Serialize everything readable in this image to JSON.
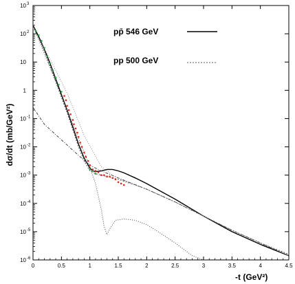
{
  "chart_data": {
    "type": "line",
    "xlabel": "-t (GeV²)",
    "ylabel": "dσ/dt  (mb/GeV²)",
    "xlim": [
      0,
      4.5
    ],
    "ylim_log10": [
      -6,
      3
    ],
    "y_scale": "log",
    "grid": false,
    "legend_position": "top-center",
    "x_ticks": [
      {
        "v": 0,
        "label": "0"
      },
      {
        "v": 0.5,
        "label": "0.5"
      },
      {
        "v": 1,
        "label": "1"
      },
      {
        "v": 1.5,
        "label": "1.5"
      },
      {
        "v": 2,
        "label": "2"
      },
      {
        "v": 2.5,
        "label": "2.5"
      },
      {
        "v": 3,
        "label": "3"
      },
      {
        "v": 3.5,
        "label": "3.5"
      },
      {
        "v": 4,
        "label": "4"
      },
      {
        "v": 4.5,
        "label": "4.5"
      }
    ],
    "y_ticks": [
      {
        "e": 3,
        "label": "10",
        "exp": "3"
      },
      {
        "e": 2,
        "label": "10",
        "exp": "2"
      },
      {
        "e": 1,
        "label": "10",
        "exp": ""
      },
      {
        "e": 0,
        "label": "1",
        "exp": ""
      },
      {
        "e": -1,
        "label": "10",
        "exp": "-1"
      },
      {
        "e": -2,
        "label": "10",
        "exp": "-2"
      },
      {
        "e": -3,
        "label": "10",
        "exp": "-3"
      },
      {
        "e": -4,
        "label": "10",
        "exp": "-4"
      },
      {
        "e": -5,
        "label": "10",
        "exp": "-5"
      },
      {
        "e": -6,
        "label": "10",
        "exp": "-6"
      }
    ],
    "legend": [
      {
        "label": "pp̄ 546 GeV",
        "style": "solid"
      },
      {
        "label": "pp 500 GeV",
        "style": "dashed"
      }
    ],
    "series": [
      {
        "name": "pp̄ 546 GeV",
        "style": "solid",
        "color": "#000000",
        "x": [
          0,
          0.1,
          0.2,
          0.3,
          0.4,
          0.5,
          0.6,
          0.7,
          0.8,
          0.9,
          1.0,
          1.05,
          1.1,
          1.2,
          1.3,
          1.4,
          1.5,
          1.6,
          1.8,
          2.0,
          2.5,
          3.0,
          3.5,
          4.0,
          4.5
        ],
        "log10y": [
          2.3,
          1.9,
          1.45,
          0.95,
          0.4,
          -0.15,
          -0.7,
          -1.3,
          -1.9,
          -2.4,
          -2.75,
          -2.85,
          -2.88,
          -2.85,
          -2.8,
          -2.8,
          -2.85,
          -2.92,
          -3.1,
          -3.3,
          -3.85,
          -4.45,
          -5.0,
          -5.45,
          -5.85
        ]
      },
      {
        "name": "pp 500 GeV",
        "style": "dashed",
        "color": "#555555",
        "x": [
          0,
          0.1,
          0.2,
          0.3,
          0.4,
          0.5,
          0.6,
          0.7,
          0.8,
          0.9,
          1.0,
          1.1,
          1.2,
          1.3,
          1.5,
          1.8,
          2.0,
          2.5,
          3.0,
          3.5,
          4.0,
          4.5
        ],
        "log10y": [
          2.25,
          1.85,
          1.4,
          0.85,
          0.3,
          -0.25,
          -0.8,
          -1.4,
          -2.0,
          -2.5,
          -2.85,
          -2.95,
          -3.0,
          -3.05,
          -3.15,
          -3.35,
          -3.5,
          -3.95,
          -4.45,
          -4.95,
          -5.4,
          -5.8
        ]
      },
      {
        "style": "dotted",
        "color": "#444444",
        "x": [
          0,
          0.2,
          0.4,
          0.6,
          0.8,
          0.9,
          1.0,
          1.1,
          1.2,
          1.25,
          1.3,
          1.35,
          1.45,
          1.6,
          1.8,
          2.0,
          2.2,
          2.5,
          2.8,
          3.0
        ],
        "log10y": [
          2.3,
          1.3,
          0.3,
          -0.7,
          -1.7,
          -2.2,
          -2.7,
          -3.3,
          -4.2,
          -4.8,
          -5.1,
          -4.9,
          -4.6,
          -4.55,
          -4.6,
          -4.75,
          -5.0,
          -5.4,
          -5.85,
          -6.0
        ]
      },
      {
        "style": "dashdot",
        "color": "#444444",
        "x": [
          0,
          0.2,
          0.5,
          0.8,
          1.0,
          1.2,
          1.5,
          2.0,
          2.5,
          3.0,
          3.5,
          4.0,
          4.5
        ],
        "log10y": [
          -0.6,
          -1.2,
          -1.75,
          -2.3,
          -2.65,
          -2.85,
          -3.1,
          -3.5,
          -3.95,
          -4.45,
          -4.95,
          -5.4,
          -5.85
        ]
      },
      {
        "style": "dotted",
        "color": "#888888",
        "x": [
          0,
          0.3,
          0.6,
          0.9,
          1.2,
          1.4,
          1.6,
          1.8,
          2.0,
          2.5,
          3.0,
          3.5,
          4.0,
          4.5
        ],
        "log10y": [
          2.2,
          1.1,
          -0.1,
          -1.6,
          -2.7,
          -3.0,
          -3.2,
          -3.35,
          -3.5,
          -3.95,
          -4.45,
          -4.95,
          -5.4,
          -5.85
        ]
      }
    ],
    "points_red": {
      "x": [
        0.55,
        0.58,
        0.6,
        0.63,
        0.66,
        0.7,
        0.72,
        0.75,
        0.78,
        0.8,
        0.83,
        0.86,
        0.9,
        0.93,
        0.97,
        1.0,
        1.05,
        1.1,
        1.15,
        1.2,
        1.25,
        1.3,
        1.35,
        1.4,
        1.45,
        1.5,
        1.55,
        1.6
      ],
      "log10y": [
        -0.2,
        -0.35,
        -0.55,
        -0.7,
        -0.85,
        -1.05,
        -1.2,
        -1.35,
        -1.5,
        -1.65,
        -1.85,
        -2.0,
        -2.2,
        -2.35,
        -2.5,
        -2.65,
        -2.8,
        -2.85,
        -2.9,
        -3.0,
        -3.0,
        -3.05,
        -3.05,
        -3.1,
        -3.15,
        -3.25,
        -3.3,
        -3.35
      ]
    },
    "points_green": {
      "x": [
        0.05,
        0.1,
        0.15,
        0.2,
        0.25,
        0.3,
        0.35,
        0.4,
        0.45,
        0.5,
        1.0,
        1.05,
        1.1
      ],
      "log10y": [
        2.1,
        1.95,
        1.75,
        1.5,
        1.2,
        0.95,
        0.7,
        0.45,
        0.2,
        -0.05,
        -2.8,
        -2.85,
        -2.95
      ]
    }
  }
}
